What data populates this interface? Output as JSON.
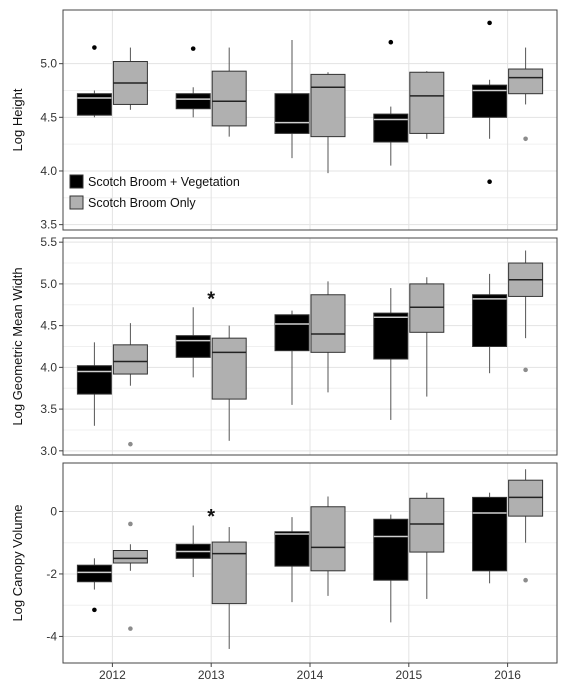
{
  "colors": {
    "veg_fill": "#000000",
    "only_fill": "#b0b0b0",
    "veg_outlier": "#000000",
    "only_outlier": "#8c8c8c",
    "grid": "#e3e3e3",
    "frame": "#444444"
  },
  "chart_data": [
    {
      "type": "box",
      "ylabel": "Log Height",
      "ylim": [
        3.45,
        5.5
      ],
      "yticks": [
        3.5,
        4.0,
        4.5,
        5.0
      ],
      "ytick_labels": [
        "3.5",
        "4.0",
        "4.5",
        "5.0"
      ],
      "grid": true,
      "legend_position": "bottom-left",
      "categories": [
        "2012",
        "2013",
        "2014",
        "2015",
        "2016"
      ],
      "series": [
        {
          "name": "Scotch Broom + Vegetation",
          "boxes": [
            {
              "min": 4.5,
              "q1": 4.52,
              "median": 4.68,
              "q3": 4.72,
              "max": 4.75,
              "outliers": [
                5.15
              ]
            },
            {
              "min": 4.5,
              "q1": 4.58,
              "median": 4.67,
              "q3": 4.72,
              "max": 4.78,
              "outliers": [
                5.14
              ]
            },
            {
              "min": 4.12,
              "q1": 4.35,
              "median": 4.45,
              "q3": 4.72,
              "max": 5.22,
              "outliers": []
            },
            {
              "min": 4.05,
              "q1": 4.27,
              "median": 4.48,
              "q3": 4.53,
              "max": 4.6,
              "outliers": [
                5.2
              ]
            },
            {
              "min": 4.3,
              "q1": 4.5,
              "median": 4.75,
              "q3": 4.8,
              "max": 4.85,
              "outliers": [
                5.38,
                3.9
              ]
            }
          ]
        },
        {
          "name": "Scotch Broom Only",
          "boxes": [
            {
              "min": 4.57,
              "q1": 4.62,
              "median": 4.82,
              "q3": 5.02,
              "max": 5.15,
              "outliers": []
            },
            {
              "min": 4.32,
              "q1": 4.42,
              "median": 4.65,
              "q3": 4.93,
              "max": 5.15,
              "outliers": []
            },
            {
              "min": 3.98,
              "q1": 4.32,
              "median": 4.78,
              "q3": 4.9,
              "max": 4.92,
              "outliers": []
            },
            {
              "min": 4.3,
              "q1": 4.35,
              "median": 4.7,
              "q3": 4.92,
              "max": 4.93,
              "outliers": []
            },
            {
              "min": 4.62,
              "q1": 4.72,
              "median": 4.87,
              "q3": 4.95,
              "max": 5.15,
              "outliers": [
                4.3
              ]
            }
          ]
        }
      ],
      "annotations": []
    },
    {
      "type": "box",
      "ylabel": "Log Geometric Mean Width",
      "ylim": [
        2.95,
        5.55
      ],
      "yticks": [
        3.0,
        3.5,
        4.0,
        4.5,
        5.0,
        5.5
      ],
      "ytick_labels": [
        "3.0",
        "3.5",
        "4.0",
        "4.5",
        "5.0",
        "5.5"
      ],
      "grid": true,
      "categories": [
        "2012",
        "2013",
        "2014",
        "2015",
        "2016"
      ],
      "series": [
        {
          "name": "Scotch Broom + Vegetation",
          "boxes": [
            {
              "min": 3.3,
              "q1": 3.68,
              "median": 3.95,
              "q3": 4.02,
              "max": 4.3,
              "outliers": []
            },
            {
              "min": 3.88,
              "q1": 4.12,
              "median": 4.32,
              "q3": 4.38,
              "max": 4.72,
              "outliers": []
            },
            {
              "min": 3.55,
              "q1": 4.2,
              "median": 4.52,
              "q3": 4.63,
              "max": 4.68,
              "outliers": []
            },
            {
              "min": 3.37,
              "q1": 4.1,
              "median": 4.6,
              "q3": 4.65,
              "max": 4.95,
              "outliers": []
            },
            {
              "min": 3.93,
              "q1": 4.25,
              "median": 4.82,
              "q3": 4.87,
              "max": 5.12,
              "outliers": []
            }
          ]
        },
        {
          "name": "Scotch Broom Only",
          "boxes": [
            {
              "min": 3.78,
              "q1": 3.92,
              "median": 4.07,
              "q3": 4.27,
              "max": 4.53,
              "outliers": [
                3.08
              ]
            },
            {
              "min": 3.12,
              "q1": 3.62,
              "median": 4.18,
              "q3": 4.35,
              "max": 4.5,
              "outliers": []
            },
            {
              "min": 3.7,
              "q1": 4.18,
              "median": 4.4,
              "q3": 4.87,
              "max": 5.03,
              "outliers": []
            },
            {
              "min": 3.65,
              "q1": 4.42,
              "median": 4.72,
              "q3": 5.0,
              "max": 5.08,
              "outliers": []
            },
            {
              "min": 4.35,
              "q1": 4.85,
              "median": 5.05,
              "q3": 5.25,
              "max": 5.4,
              "outliers": [
                3.97
              ]
            }
          ]
        }
      ],
      "annotations": [
        {
          "text": "*",
          "category": "2013",
          "y": 4.86
        }
      ]
    },
    {
      "type": "box",
      "ylabel": "Log Canopy Volume",
      "ylim": [
        -4.85,
        1.55
      ],
      "yticks": [
        -4,
        -2,
        0
      ],
      "ytick_labels": [
        "-4",
        "-2",
        "0"
      ],
      "grid": true,
      "xlabel": "",
      "categories": [
        "2012",
        "2013",
        "2014",
        "2015",
        "2016"
      ],
      "series": [
        {
          "name": "Scotch Broom + Vegetation",
          "boxes": [
            {
              "min": -2.5,
              "q1": -2.25,
              "median": -1.95,
              "q3": -1.72,
              "max": -1.5,
              "outliers": [
                -3.15
              ]
            },
            {
              "min": -2.1,
              "q1": -1.5,
              "median": -1.28,
              "q3": -1.05,
              "max": -0.45,
              "outliers": []
            },
            {
              "min": -2.9,
              "q1": -1.75,
              "median": -0.72,
              "q3": -0.65,
              "max": -0.18,
              "outliers": []
            },
            {
              "min": -3.55,
              "q1": -2.2,
              "median": -0.8,
              "q3": -0.25,
              "max": -0.1,
              "outliers": []
            },
            {
              "min": -2.3,
              "q1": -1.9,
              "median": -0.05,
              "q3": 0.45,
              "max": 0.6,
              "outliers": []
            }
          ]
        },
        {
          "name": "Scotch Broom Only",
          "boxes": [
            {
              "min": -1.9,
              "q1": -1.65,
              "median": -1.5,
              "q3": -1.25,
              "max": -1.05,
              "outliers": [
                -0.4,
                -3.75
              ]
            },
            {
              "min": -4.4,
              "q1": -2.95,
              "median": -1.35,
              "q3": -0.98,
              "max": -0.5,
              "outliers": []
            },
            {
              "min": -2.7,
              "q1": -1.9,
              "median": -1.15,
              "q3": 0.15,
              "max": 0.48,
              "outliers": []
            },
            {
              "min": -2.8,
              "q1": -1.3,
              "median": -0.4,
              "q3": 0.42,
              "max": 0.6,
              "outliers": []
            },
            {
              "min": -1.0,
              "q1": -0.15,
              "median": 0.45,
              "q3": 1.0,
              "max": 1.35,
              "outliers": [
                -2.2
              ]
            }
          ]
        }
      ],
      "annotations": [
        {
          "text": "*",
          "category": "2013",
          "y": -0.05
        }
      ]
    }
  ]
}
